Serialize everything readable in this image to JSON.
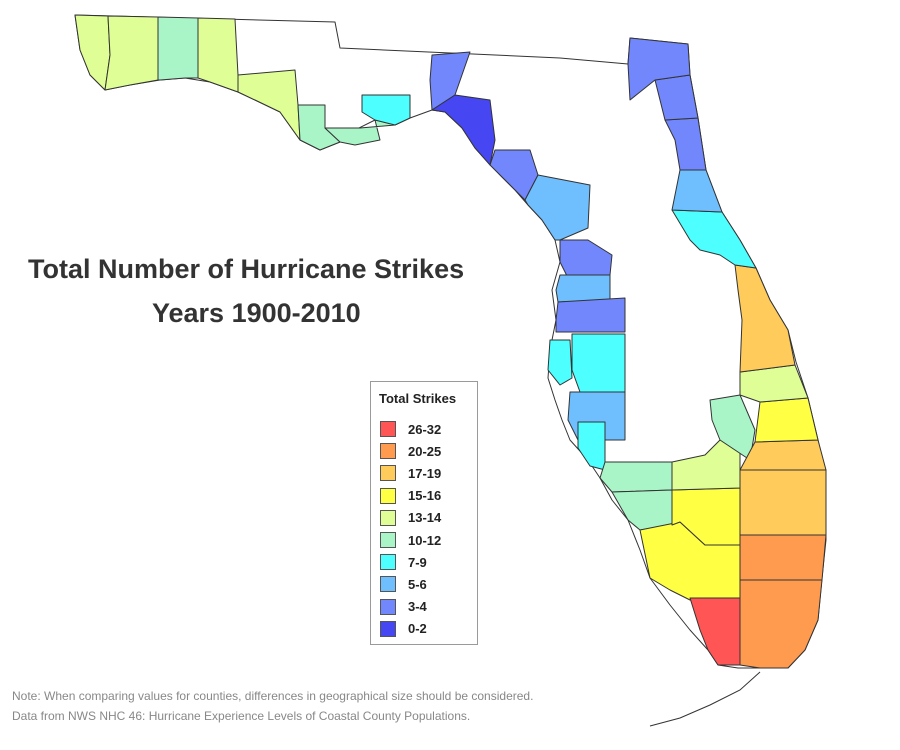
{
  "title": {
    "line1": "Total Number of Hurricane Strikes",
    "line2": "Years 1900-2010"
  },
  "legend": {
    "title": "Total Strikes",
    "placement": "center",
    "items": [
      {
        "label": "26-32",
        "color": "#ff5555"
      },
      {
        "label": "20-25",
        "color": "#ff9b4f"
      },
      {
        "label": "17-19",
        "color": "#ffcb5a"
      },
      {
        "label": "15-16",
        "color": "#ffff44"
      },
      {
        "label": "13-14",
        "color": "#dfff96"
      },
      {
        "label": "10-12",
        "color": "#aaf5c8"
      },
      {
        "label": "7-9",
        "color": "#4dffff"
      },
      {
        "label": "5-6",
        "color": "#6fbfff"
      },
      {
        "label": "3-4",
        "color": "#7287fb"
      },
      {
        "label": "0-2",
        "color": "#4646f2"
      }
    ]
  },
  "notes": {
    "line1": "Note: When comparing values for counties, differences in geographical size should be considered.",
    "line2": "Data from NWS NHC 46: Hurricane Experience Levels of Coastal County Populations."
  },
  "map": {
    "region": "Florida",
    "unit": "county",
    "default_color": "#ffffff",
    "border_color": "#333333"
  }
}
